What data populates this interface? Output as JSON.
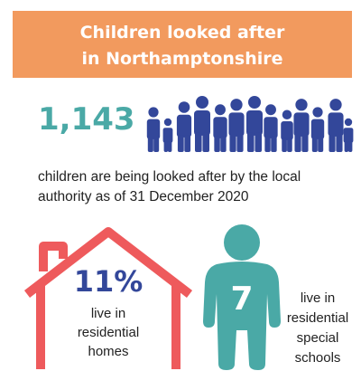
{
  "header": {
    "title_lines": [
      "Children looked after",
      "in Northamptonshire"
    ]
  },
  "headline": {
    "number": "1,143",
    "description_lines": [
      "children are being looked after by the local",
      "authority as of 31 December 2020"
    ]
  },
  "homes": {
    "number": "11%",
    "lines": [
      "live in",
      "residential",
      "homes"
    ]
  },
  "schools": {
    "number": "7",
    "lines": [
      "live in",
      "residential",
      "special",
      "schools"
    ]
  }
}
